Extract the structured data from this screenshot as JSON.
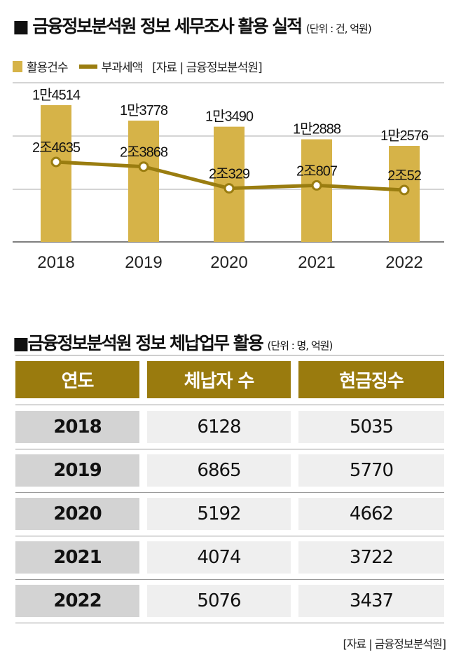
{
  "title1": {
    "text": "금융정보분석원 정보 세무조사 활용 실적",
    "unit": "(단위 : 건, 억원)"
  },
  "legend": {
    "bar": "활용건수",
    "line": "부과세액",
    "source": "[자료 | 금융정보분석원]"
  },
  "chart_data": {
    "type": "bar+line",
    "categories": [
      "2018",
      "2019",
      "2020",
      "2021",
      "2022"
    ],
    "series": [
      {
        "name": "활용건수",
        "type": "bar",
        "values": [
          14514,
          13778,
          13490,
          12888,
          12576
        ],
        "labels": [
          "1만4514",
          "1만3778",
          "1만3490",
          "1만2888",
          "1만2576"
        ],
        "color": "#D6B348"
      },
      {
        "name": "부과세액",
        "type": "line",
        "values": [
          24635,
          23868,
          20329,
          20807,
          20052
        ],
        "labels": [
          "2조4635",
          "2조3868",
          "2조329",
          "2조807",
          "2조52"
        ],
        "color": "#9A7D10"
      }
    ],
    "grid": true,
    "legend": "top-left"
  },
  "title2": {
    "text": "금융정보분석원 정보 체납업무 활용",
    "unit": "(단위 : 명, 억원)"
  },
  "table": {
    "headers": [
      "연도",
      "체납자 수",
      "현금징수"
    ],
    "rows": [
      [
        "2018",
        "6128",
        "5035"
      ],
      [
        "2019",
        "6865",
        "5770"
      ],
      [
        "2020",
        "5192",
        "4662"
      ],
      [
        "2021",
        "4074",
        "3722"
      ],
      [
        "2022",
        "5076",
        "3437"
      ]
    ]
  },
  "source": "[자료 | 금융정보분석원]"
}
